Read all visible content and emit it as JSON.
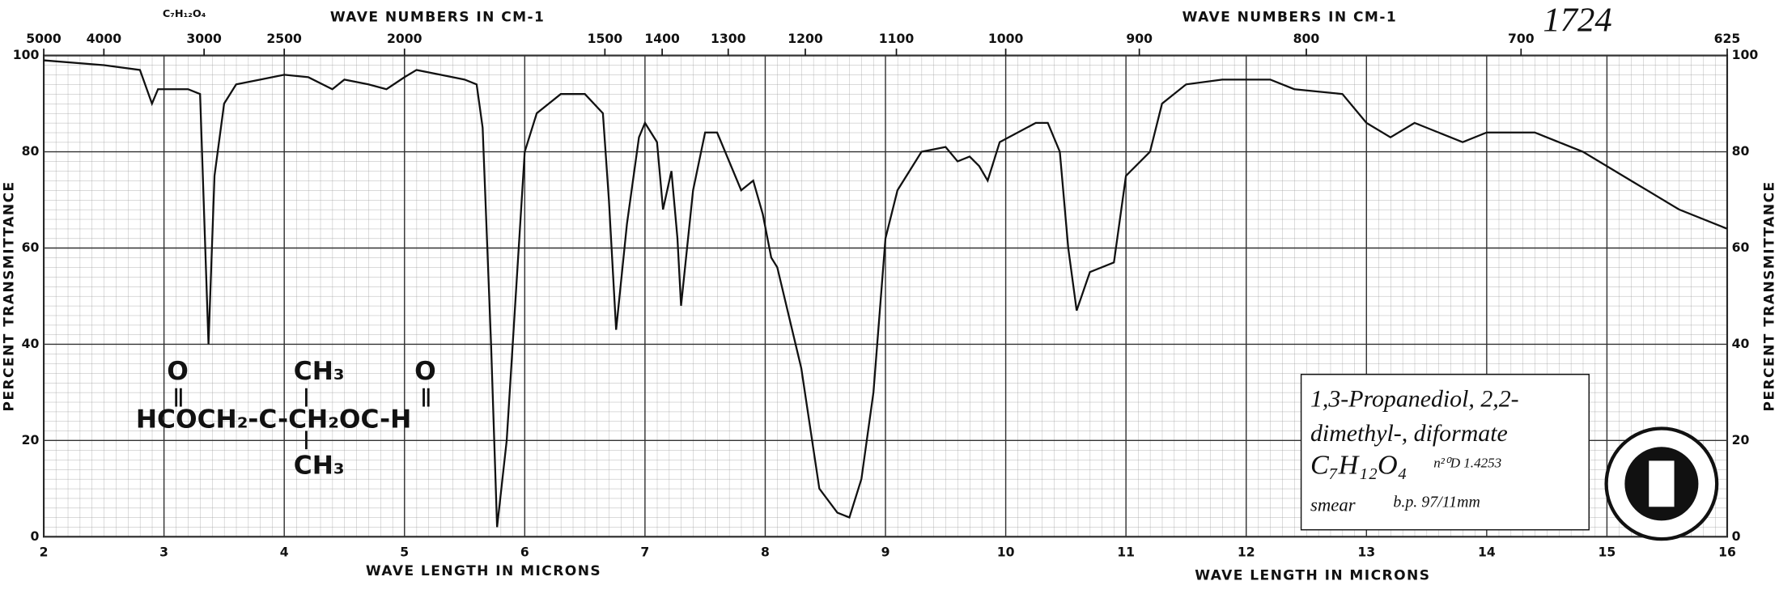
{
  "chart_data": {
    "type": "line",
    "title": "1724",
    "formula_top": "C₇H₁₂O₄",
    "xlabel": "WAVE LENGTH IN MICRONS",
    "xlabel2": "WAVE LENGTH IN MICRONS",
    "x2label": "WAVE NUMBERS IN CM-1",
    "x2label2": "WAVE NUMBERS IN CM-1",
    "ylabel": "PERCENT TRANSMITTANCE",
    "y2label": "PERCENT TRANSMITTANCE",
    "annotation": {
      "lines": [
        "1,3-Propanediol, 2,2-",
        "dimethyl-, diformate",
        "C₇H₁₂O₄",
        "n²⁰D 1.4253",
        "smear",
        "b.p. 97/11mm"
      ]
    },
    "structure": {
      "o1": "O",
      "o2": "O",
      "ch3_top": "CH₃",
      "ch3_bottom": "CH₃",
      "main": "HCOCH₂-C-CH₂OC-H"
    },
    "xlim": [
      2,
      16
    ],
    "xticks": [
      2,
      3,
      4,
      5,
      6,
      7,
      8,
      9,
      10,
      11,
      12,
      13,
      14,
      15,
      16
    ],
    "x2ticks": [
      5000,
      4000,
      3000,
      2500,
      2000,
      1500,
      1400,
      1300,
      1200,
      1100,
      1000,
      900,
      800,
      700,
      625
    ],
    "ylim": [
      0,
      100
    ],
    "yticks": [
      0,
      20,
      40,
      60,
      80,
      100
    ],
    "grid": true,
    "series": [
      {
        "name": "spectrum",
        "color": "#111111",
        "x": [
          2.0,
          2.5,
          2.8,
          2.9,
          2.95,
          3.2,
          3.3,
          3.37,
          3.42,
          3.5,
          3.6,
          3.8,
          4.0,
          4.2,
          4.4,
          4.5,
          4.7,
          4.85,
          5.0,
          5.1,
          5.3,
          5.5,
          5.6,
          5.65,
          5.72,
          5.77,
          5.85,
          6.0,
          6.1,
          6.3,
          6.5,
          6.65,
          6.7,
          6.76,
          6.85,
          6.95,
          7.0,
          7.1,
          7.15,
          7.22,
          7.27,
          7.3,
          7.4,
          7.5,
          7.6,
          7.7,
          7.8,
          7.9,
          7.98,
          8.05,
          8.1,
          8.3,
          8.45,
          8.6,
          8.7,
          8.8,
          8.9,
          9.0,
          9.1,
          9.3,
          9.5,
          9.6,
          9.7,
          9.78,
          9.85,
          9.95,
          10.1,
          10.25,
          10.35,
          10.45,
          10.52,
          10.59,
          10.7,
          10.9,
          11.0,
          11.2,
          11.3,
          11.5,
          11.8,
          12.2,
          12.4,
          12.8,
          13.0,
          13.2,
          13.4,
          13.6,
          13.8,
          14.0,
          14.4,
          14.8,
          15.2,
          15.6,
          16.0
        ],
        "values": [
          99,
          98,
          97,
          90,
          93,
          93,
          92,
          40,
          75,
          90,
          94,
          95,
          96,
          95.5,
          93,
          95,
          94,
          93,
          95.5,
          97,
          96,
          95,
          94,
          85,
          40,
          2,
          20,
          80,
          88,
          92,
          92,
          88,
          70,
          43,
          65,
          83,
          86,
          82,
          68,
          76,
          62,
          48,
          72,
          84,
          84,
          78,
          72,
          74,
          67,
          58,
          56,
          35,
          10,
          5,
          4,
          12,
          30,
          62,
          72,
          80,
          81,
          78,
          79,
          77,
          74,
          82,
          84,
          86,
          86,
          80,
          60,
          47,
          55,
          57,
          75,
          80,
          90,
          94,
          95,
          95,
          93,
          92,
          86,
          83,
          86,
          84,
          82,
          84,
          84,
          80,
          74,
          68,
          64
        ]
      }
    ]
  }
}
